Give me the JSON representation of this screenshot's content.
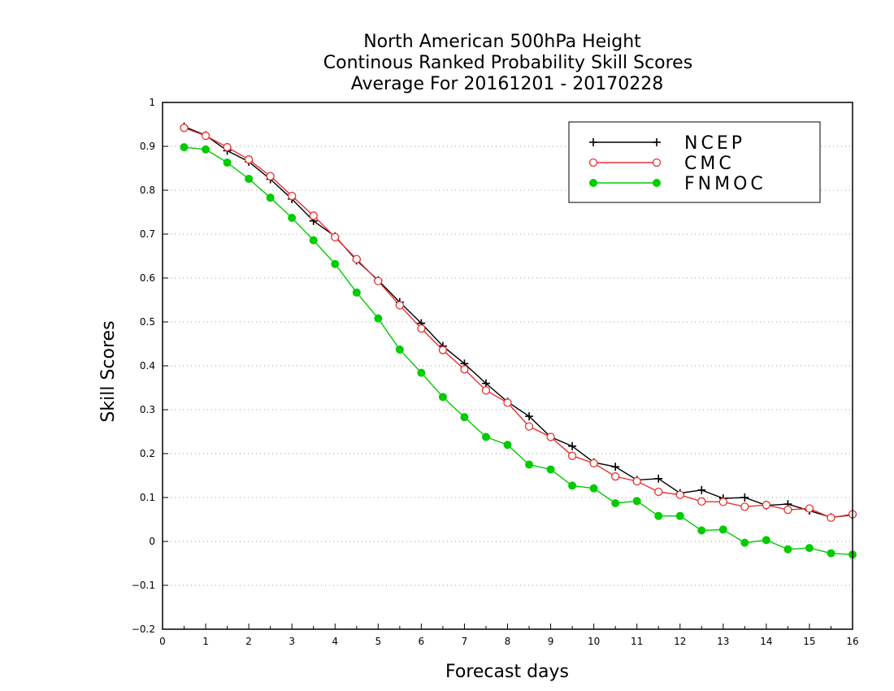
{
  "chart_data": {
    "type": "line",
    "title_lines": [
      "North American 500hPa Height",
      "Continous Ranked Probability Skill Scores",
      "Average For 20161201 - 20170228"
    ],
    "xlabel": "Forecast days",
    "ylabel": "Skill Scores",
    "xlim": [
      0,
      16
    ],
    "ylim": [
      -0.2,
      1
    ],
    "x_ticks": [
      0,
      1,
      2,
      3,
      4,
      5,
      6,
      7,
      8,
      9,
      10,
      11,
      12,
      13,
      14,
      15,
      16
    ],
    "x_tick_labels": [
      "0",
      "1",
      "2",
      "3",
      "4",
      "5",
      "6",
      "7",
      "8",
      "9",
      "10",
      "11",
      "12",
      "13",
      "14",
      "15",
      "16"
    ],
    "y_ticks": [
      -0.2,
      -0.1,
      0,
      0.1,
      0.2,
      0.3,
      0.4,
      0.5,
      0.6,
      0.7,
      0.8,
      0.9,
      1
    ],
    "y_tick_labels": [
      "−0.2",
      "−0.1",
      "0",
      "0.1",
      "0.2",
      "0.3",
      "0.4",
      "0.5",
      "0.6",
      "0.7",
      "0.8",
      "0.9",
      "1"
    ],
    "grid": "horizontal dotted",
    "legend_position": "top-right",
    "x": [
      0.5,
      1,
      1.5,
      2,
      2.5,
      3,
      3.5,
      4,
      4.5,
      5,
      5.5,
      6,
      6.5,
      7,
      7.5,
      8,
      8.5,
      9,
      9.5,
      10,
      10.5,
      11,
      11.5,
      12,
      12.5,
      13,
      13.5,
      14,
      14.5,
      15,
      15.5,
      16
    ],
    "series": [
      {
        "name": "NCEP",
        "color": "#000000",
        "marker": "plus",
        "values": [
          0.945,
          0.925,
          0.89,
          0.865,
          0.825,
          0.78,
          0.73,
          0.695,
          0.64,
          0.595,
          0.545,
          0.497,
          0.445,
          0.405,
          0.36,
          0.318,
          0.285,
          0.238,
          0.217,
          0.18,
          0.17,
          0.14,
          0.143,
          0.11,
          0.117,
          0.098,
          0.1,
          0.082,
          0.085,
          0.07,
          0.055,
          0.06
        ]
      },
      {
        "name": "CMC",
        "color": "#e83030",
        "marker": "open-circle",
        "values": [
          0.942,
          0.924,
          0.898,
          0.87,
          0.832,
          0.787,
          0.742,
          0.693,
          0.643,
          0.593,
          0.538,
          0.485,
          0.436,
          0.392,
          0.344,
          0.316,
          0.262,
          0.238,
          0.195,
          0.178,
          0.148,
          0.137,
          0.113,
          0.106,
          0.091,
          0.09,
          0.079,
          0.083,
          0.072,
          0.075,
          0.054,
          0.062
        ]
      },
      {
        "name": "FNMOC",
        "color": "#00cc00",
        "marker": "filled-circle",
        "values": [
          0.898,
          0.893,
          0.863,
          0.826,
          0.783,
          0.737,
          0.686,
          0.632,
          0.567,
          0.508,
          0.437,
          0.384,
          0.329,
          0.283,
          0.238,
          0.22,
          0.175,
          0.164,
          0.127,
          0.121,
          0.087,
          0.092,
          0.058,
          0.058,
          0.025,
          0.027,
          -0.003,
          0.003,
          -0.018,
          -0.015,
          -0.027,
          -0.03
        ]
      }
    ]
  }
}
